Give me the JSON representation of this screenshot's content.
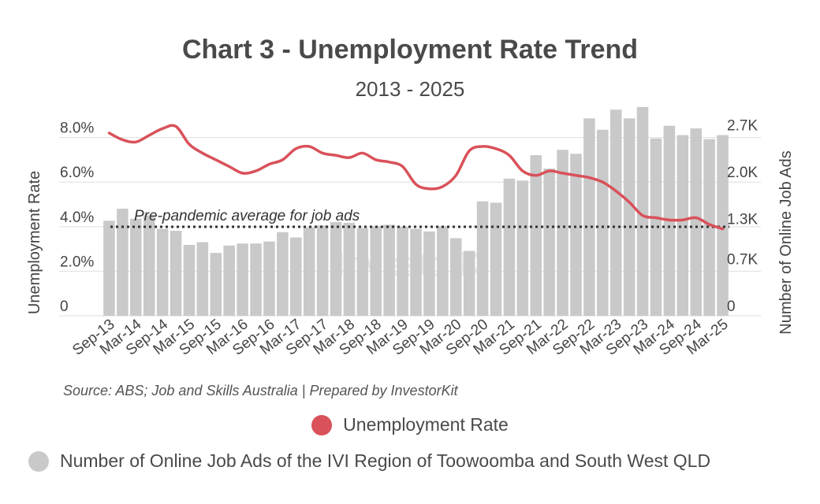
{
  "chart_data": {
    "type": "bar+line",
    "title": "Chart 3 - Unemployment Rate Trend",
    "subtitle": "2013 - 2025",
    "x": [
      "Sep-13",
      "Dec-13",
      "Mar-14",
      "Jun-14",
      "Sep-14",
      "Dec-14",
      "Mar-15",
      "Jun-15",
      "Sep-15",
      "Dec-15",
      "Mar-16",
      "Jun-16",
      "Sep-16",
      "Dec-16",
      "Mar-17",
      "Jun-17",
      "Sep-17",
      "Dec-17",
      "Mar-18",
      "Jun-18",
      "Sep-18",
      "Dec-18",
      "Mar-19",
      "Jun-19",
      "Sep-19",
      "Dec-19",
      "Mar-20",
      "Jun-20",
      "Sep-20",
      "Dec-20",
      "Mar-21",
      "Jun-21",
      "Sep-21",
      "Dec-21",
      "Mar-22",
      "Jun-22",
      "Sep-22",
      "Dec-22",
      "Mar-23",
      "Jun-23",
      "Sep-23",
      "Dec-23",
      "Mar-24",
      "Jun-24",
      "Sep-24",
      "Dec-24",
      "Mar-25"
    ],
    "tick_labels": [
      "Sep-13",
      "Mar-14",
      "Sep-14",
      "Mar-15",
      "Sep-15",
      "Mar-16",
      "Sep-16",
      "Mar-17",
      "Sep-17",
      "Mar-18",
      "Sep-18",
      "Mar-19",
      "Sep-19",
      "Mar-20",
      "Sep-20",
      "Mar-21",
      "Sep-21",
      "Mar-22",
      "Sep-22",
      "Mar-23",
      "Sep-23",
      "Mar-24",
      "Sep-24",
      "Mar-25"
    ],
    "y_left": {
      "label": "Unemployment Rate",
      "ticks": [
        "0",
        "2.0%",
        "4.0%",
        "6.0%",
        "8.0%"
      ],
      "tick_values": [
        0,
        2,
        4,
        6,
        8
      ],
      "range": [
        0,
        8.8
      ]
    },
    "y_right": {
      "label": "Number of Online Job Ads",
      "ticks": [
        "0",
        "0.7K",
        "1.3K",
        "2.0K",
        "2.7K"
      ],
      "tick_values": [
        0,
        0.7,
        1.3,
        2.0,
        2.7
      ],
      "range": [
        0,
        2.93
      ]
    },
    "series": [
      {
        "name": "Number of Online Job Ads of the IVI Region of Toowoomba and South West QLD",
        "kind": "bar",
        "axis": "right",
        "values": [
          1420,
          1600,
          1450,
          1500,
          1300,
          1270,
          1060,
          1100,
          940,
          1050,
          1080,
          1080,
          1110,
          1250,
          1170,
          1320,
          1350,
          1400,
          1390,
          1310,
          1340,
          1360,
          1330,
          1300,
          1260,
          1340,
          1160,
          970,
          1710,
          1690,
          2050,
          2020,
          2400,
          2200,
          2480,
          2420,
          2950,
          2780,
          3080,
          2950,
          3120,
          2650,
          2840,
          2700,
          2800,
          2640,
          2700
        ]
      },
      {
        "name": "Unemployment Rate",
        "kind": "line",
        "axis": "left",
        "values": [
          8.2,
          7.9,
          7.8,
          8.1,
          8.4,
          8.5,
          7.7,
          7.3,
          7.0,
          6.7,
          6.4,
          6.5,
          6.8,
          7.0,
          7.5,
          7.6,
          7.3,
          7.2,
          7.1,
          7.3,
          7.0,
          6.9,
          6.7,
          5.9,
          5.7,
          5.8,
          6.3,
          7.4,
          7.6,
          7.5,
          7.2,
          6.5,
          6.3,
          6.5,
          6.4,
          6.3,
          6.2,
          6.0,
          5.6,
          5.1,
          4.5,
          4.4,
          4.3,
          4.3,
          4.4,
          4.1,
          3.9
        ]
      }
    ],
    "annotation": {
      "text": "Pre-pandemic average for job ads",
      "value": 1330,
      "style": "dotted"
    },
    "watermark": "InvestorKit",
    "source": "Source: ABS; Job and Skills Australia | Prepared by InvestorKit",
    "legend_position": "bottom",
    "colors": {
      "bar": "#c9c9c9",
      "line": "#d9515a",
      "grid": "#dddddd",
      "annotation": "#333333",
      "text": "#4a4a4a"
    },
    "grid": true
  }
}
